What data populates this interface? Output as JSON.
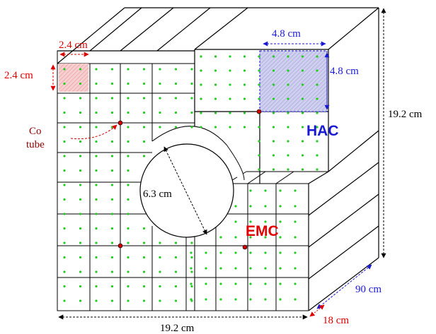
{
  "labels": {
    "cell_width": "2.4 cm",
    "cell_height": "2.4 cm",
    "hac_cell_width": "4.8 cm",
    "hac_cell_height": "4.8 cm",
    "total_height": "19.2 cm",
    "total_width": "19.2 cm",
    "hac_depth": "90 cm",
    "emc_depth": "18 cm",
    "hole_diameter": "6.3 cm",
    "co_tube_line1": "Co",
    "co_tube_line2": "tube",
    "hac": "HAC",
    "emc": "EMC"
  },
  "colors": {
    "fiber_dot": "#22cc22",
    "co_tube": "#cc0000",
    "red_dim": "#dd0000",
    "blue_dim": "#1a1ad0",
    "hac_label": "#1a1ad0",
    "emc_label": "#e00000",
    "co_label": "#8b0000",
    "line": "#000000"
  }
}
